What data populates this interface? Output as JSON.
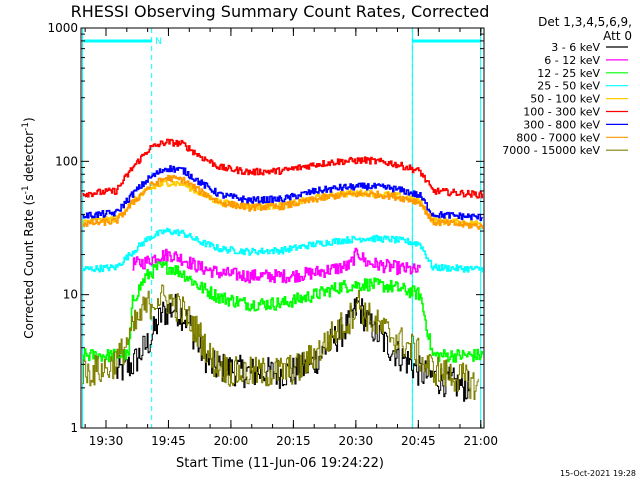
{
  "chart_data": {
    "type": "line",
    "title": "RHESSI Observing Summary Count Rates, Corrected",
    "xlabel": "Start Time (11-Jun-06 19:24:22)",
    "ylabel_main": "Corrected Count Rate (s",
    "ylabel_sup1": "-1",
    "ylabel_mid": " detector",
    "ylabel_sup2": "-1",
    "ylabel_end": ")",
    "y_scale": "log",
    "ylim": [
      1,
      1000
    ],
    "xlim_minutes": [
      -0.37,
      96.4
    ],
    "x_ticks": [
      {
        "label": "19:30",
        "min": 5.63
      },
      {
        "label": "19:45",
        "min": 20.63
      },
      {
        "label": "20:00",
        "min": 35.63
      },
      {
        "label": "20:15",
        "min": 50.63
      },
      {
        "label": "20:30",
        "min": 65.63
      },
      {
        "label": "20:45",
        "min": 80.63
      },
      {
        "label": "21:00",
        "min": 95.63
      }
    ],
    "y_ticks": [
      {
        "label": "1",
        "value": 1
      },
      {
        "label": "10",
        "value": 10
      },
      {
        "label": "100",
        "value": 100
      },
      {
        "label": "1000",
        "value": 1000
      }
    ],
    "legend_header": [
      "Det 1,3,4,5,6,9,",
      "Att 0"
    ],
    "legend_position": "top-right",
    "night_marker_label": "N",
    "footer_date": "15-Oct-2021 19:28",
    "series": [
      {
        "name": "3 - 6 keV",
        "color": "#000000",
        "points": [
          [
            8,
            2.6
          ],
          [
            12,
            3.0
          ],
          [
            16,
            4.5
          ],
          [
            19,
            7.2
          ],
          [
            22,
            8.0
          ],
          [
            25,
            6.5
          ],
          [
            28,
            4.0
          ],
          [
            31,
            2.9
          ],
          [
            40,
            2.6
          ],
          [
            50,
            2.6
          ],
          [
            55,
            3.0
          ],
          [
            60,
            4.5
          ],
          [
            64,
            6.0
          ],
          [
            66,
            8.5
          ],
          [
            68,
            6.5
          ],
          [
            72,
            4.5
          ],
          [
            76,
            3.5
          ],
          [
            79,
            3.0
          ],
          [
            81,
            2.6
          ],
          [
            84,
            2.4
          ],
          [
            88,
            2.2
          ],
          [
            93,
            2.0
          ]
        ]
      },
      {
        "name": "6 - 12 keV",
        "color": "#ff00ff",
        "points": [
          [
            12,
            17.0
          ],
          [
            15,
            17.5
          ],
          [
            18,
            19.5
          ],
          [
            21,
            20.0
          ],
          [
            24,
            18.5
          ],
          [
            28,
            16.0
          ],
          [
            33,
            14.5
          ],
          [
            40,
            13.8
          ],
          [
            50,
            13.8
          ],
          [
            55,
            14.5
          ],
          [
            60,
            15.5
          ],
          [
            64,
            16.5
          ],
          [
            66,
            21.0
          ],
          [
            68,
            17.5
          ],
          [
            72,
            16.5
          ],
          [
            78,
            15.5
          ],
          [
            81,
            15.0
          ]
        ]
      },
      {
        "name": "12 - 25 keV",
        "color": "#00ff00",
        "points": [
          [
            0,
            3.5
          ],
          [
            11,
            3.5
          ],
          [
            12,
            9.0
          ],
          [
            15,
            13.5
          ],
          [
            18,
            16.0
          ],
          [
            21,
            16.0
          ],
          [
            24,
            14.5
          ],
          [
            28,
            11.5
          ],
          [
            33,
            9.5
          ],
          [
            40,
            8.5
          ],
          [
            48,
            8.6
          ],
          [
            56,
            10.0
          ],
          [
            62,
            11.5
          ],
          [
            68,
            12.0
          ],
          [
            74,
            11.5
          ],
          [
            79,
            10.5
          ],
          [
            81,
            10.0
          ],
          [
            84,
            3.5
          ],
          [
            96,
            3.5
          ]
        ]
      },
      {
        "name": "25 - 50 keV",
        "color": "#00ffff",
        "points": [
          [
            0,
            15.5
          ],
          [
            8,
            16.0
          ],
          [
            12,
            21.0
          ],
          [
            16,
            27.0
          ],
          [
            20,
            30.0
          ],
          [
            24,
            29.0
          ],
          [
            28,
            25.0
          ],
          [
            33,
            22.0
          ],
          [
            40,
            21.0
          ],
          [
            48,
            21.5
          ],
          [
            56,
            24.0
          ],
          [
            62,
            25.5
          ],
          [
            68,
            26.5
          ],
          [
            74,
            26.0
          ],
          [
            78,
            25.0
          ],
          [
            81,
            24.0
          ],
          [
            84,
            16.0
          ],
          [
            96,
            15.5
          ]
        ]
      },
      {
        "name": "50 - 100 keV",
        "color": "#ffcc00",
        "points": [
          [
            0,
            35.0
          ],
          [
            8,
            37.0
          ],
          [
            12,
            50.0
          ],
          [
            16,
            62.0
          ],
          [
            20,
            69.0
          ],
          [
            24,
            68.0
          ],
          [
            28,
            58.0
          ],
          [
            33,
            49.0
          ],
          [
            40,
            46.0
          ],
          [
            48,
            46.5
          ],
          [
            56,
            53.0
          ],
          [
            62,
            57.0
          ],
          [
            68,
            58.0
          ],
          [
            74,
            56.0
          ],
          [
            78,
            53.0
          ],
          [
            81,
            50.0
          ],
          [
            84,
            36.0
          ],
          [
            96,
            34.0
          ]
        ]
      },
      {
        "name": "100 - 300 keV",
        "color": "#ff0000",
        "points": [
          [
            0,
            57.0
          ],
          [
            8,
            60.0
          ],
          [
            12,
            90.0
          ],
          [
            16,
            125.0
          ],
          [
            20,
            140.0
          ],
          [
            24,
            135.0
          ],
          [
            28,
            110.0
          ],
          [
            33,
            90.0
          ],
          [
            40,
            83.0
          ],
          [
            48,
            85.0
          ],
          [
            56,
            95.0
          ],
          [
            62,
            100.0
          ],
          [
            68,
            102.0
          ],
          [
            74,
            97.0
          ],
          [
            78,
            90.0
          ],
          [
            81,
            84.0
          ],
          [
            84,
            60.0
          ],
          [
            96,
            56.0
          ]
        ]
      },
      {
        "name": "300 - 800 keV",
        "color": "#0000ff",
        "points": [
          [
            0,
            39.0
          ],
          [
            8,
            41.0
          ],
          [
            12,
            57.0
          ],
          [
            16,
            75.0
          ],
          [
            20,
            89.0
          ],
          [
            24,
            86.0
          ],
          [
            28,
            70.0
          ],
          [
            33,
            56.0
          ],
          [
            40,
            51.0
          ],
          [
            48,
            52.0
          ],
          [
            56,
            60.0
          ],
          [
            62,
            63.5
          ],
          [
            68,
            65.0
          ],
          [
            74,
            63.0
          ],
          [
            78,
            59.0
          ],
          [
            81,
            55.0
          ],
          [
            84,
            40.0
          ],
          [
            96,
            38.0
          ]
        ]
      },
      {
        "name": "800 - 7000 keV",
        "color": "#ff9900",
        "points": [
          [
            0,
            34.0
          ],
          [
            8,
            35.5
          ],
          [
            12,
            49.0
          ],
          [
            16,
            65.0
          ],
          [
            20,
            75.0
          ],
          [
            24,
            73.0
          ],
          [
            28,
            60.0
          ],
          [
            33,
            49.0
          ],
          [
            40,
            45.0
          ],
          [
            48,
            46.0
          ],
          [
            56,
            52.0
          ],
          [
            62,
            56.0
          ],
          [
            68,
            57.0
          ],
          [
            74,
            55.0
          ],
          [
            78,
            52.0
          ],
          [
            81,
            49.0
          ],
          [
            84,
            35.0
          ],
          [
            96,
            32.5
          ]
        ]
      },
      {
        "name": "7000 - 15000 keV",
        "color": "#808000",
        "points": [
          [
            0,
            2.6
          ],
          [
            6,
            2.8
          ],
          [
            9,
            3.5
          ],
          [
            12,
            5.5
          ],
          [
            15,
            8.0
          ],
          [
            18,
            9.5
          ],
          [
            21,
            9.0
          ],
          [
            24,
            7.5
          ],
          [
            28,
            5.0
          ],
          [
            31,
            3.2
          ],
          [
            36,
            2.6
          ],
          [
            45,
            2.6
          ],
          [
            52,
            2.8
          ],
          [
            56,
            3.6
          ],
          [
            60,
            5.0
          ],
          [
            64,
            6.5
          ],
          [
            66,
            9.0
          ],
          [
            68,
            7.0
          ],
          [
            72,
            5.5
          ],
          [
            76,
            4.5
          ],
          [
            80,
            3.8
          ],
          [
            82,
            3.0
          ],
          [
            86,
            2.6
          ],
          [
            92,
            2.3
          ],
          [
            95,
            2.0
          ]
        ]
      }
    ],
    "attenuator_bars_minutes": [
      [
        0.3,
        16.6
      ],
      [
        79.2,
        95.6
      ]
    ],
    "night_boundaries_minutes": [
      16.6,
      79.2
    ],
    "vertical_lines_minutes": [
      0.0,
      79.2,
      95.6
    ]
  }
}
